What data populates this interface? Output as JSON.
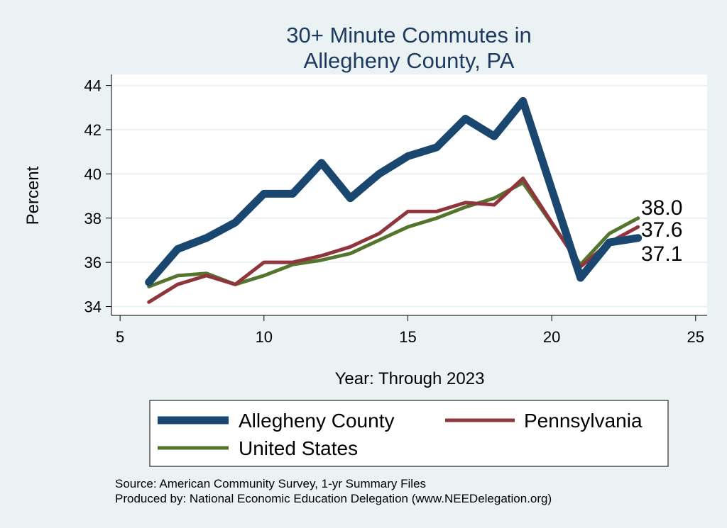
{
  "chart_data": {
    "type": "line",
    "title": [
      "30+ Minute Commutes in",
      "Allegheny County, PA"
    ],
    "xlabel": "Year: Through 2023",
    "ylabel": "Percent",
    "xlim": [
      4.7,
      25.4
    ],
    "ylim": [
      33.6,
      44.5
    ],
    "xticks": [
      5,
      10,
      15,
      20,
      25
    ],
    "yticks": [
      34,
      36,
      38,
      40,
      42,
      44
    ],
    "grid": "horizontal",
    "legend_position": "bottom",
    "series": [
      {
        "name": "Allegheny County",
        "color": "#1a476f",
        "x": [
          6,
          7,
          8,
          9,
          10,
          11,
          12,
          13,
          14,
          15,
          16,
          17,
          18,
          19,
          21,
          22,
          23
        ],
        "values": [
          35.1,
          36.6,
          37.1,
          37.8,
          39.1,
          39.1,
          40.5,
          38.9,
          40.0,
          40.8,
          41.2,
          42.5,
          41.7,
          43.3,
          35.3,
          36.9,
          37.1
        ],
        "end_label": "37.1"
      },
      {
        "name": "Pennsylvania",
        "color": "#90353b",
        "x": [
          6,
          7,
          8,
          9,
          10,
          11,
          12,
          13,
          14,
          15,
          16,
          17,
          18,
          19,
          21,
          22,
          23
        ],
        "values": [
          34.2,
          35.0,
          35.4,
          35.0,
          36.0,
          36.0,
          36.3,
          36.7,
          37.3,
          38.3,
          38.3,
          38.7,
          38.6,
          39.8,
          35.8,
          36.9,
          37.6
        ],
        "end_label": "37.6"
      },
      {
        "name": "United States",
        "color": "#55752f",
        "x": [
          6,
          7,
          8,
          9,
          10,
          11,
          12,
          13,
          14,
          15,
          16,
          17,
          18,
          19,
          21,
          22,
          23
        ],
        "values": [
          34.9,
          35.4,
          35.5,
          35.0,
          35.4,
          35.9,
          36.1,
          36.4,
          37.0,
          37.6,
          38.0,
          38.5,
          38.9,
          39.6,
          35.9,
          37.3,
          38.0
        ],
        "end_label": "38.0"
      }
    ],
    "source_lines": [
      "Source: American Community Survey, 1-yr Summary Files",
      "Produced by: National Economic Education Delegation (www.NEEDelegation.org)"
    ]
  }
}
